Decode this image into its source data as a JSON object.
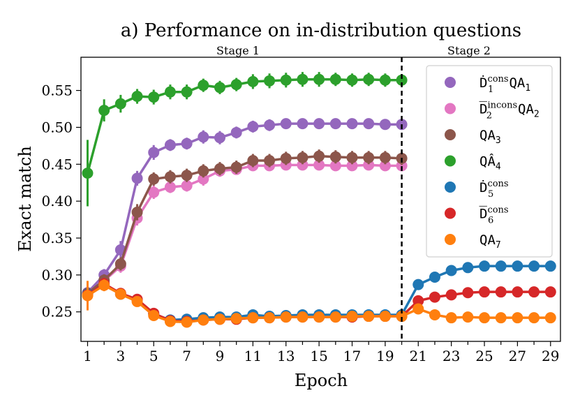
{
  "chart_data": {
    "type": "line",
    "title": "a) Performance on in-distribution questions",
    "xlabel": "Epoch",
    "ylabel": "Exact match",
    "xlim": [
      0.6,
      29.6
    ],
    "ylim": [
      0.21,
      0.595
    ],
    "xticks": [
      1,
      3,
      5,
      7,
      9,
      11,
      13,
      15,
      17,
      19,
      21,
      23,
      25,
      27,
      29
    ],
    "yticks": [
      0.25,
      0.3,
      0.35,
      0.4,
      0.45,
      0.5,
      0.55
    ],
    "ytick_labels": [
      "0.25",
      "0.30",
      "0.35",
      "0.40",
      "0.45",
      "0.50",
      "0.55"
    ],
    "stage_labels": {
      "stage1": "Stage 1",
      "stage2": "Stage 2"
    },
    "stage_boundary_epoch": 20,
    "legend_position": "top-right",
    "series": [
      {
        "name": "Ḋ1cons QA1",
        "legend": {
          "base": "Ḋ",
          "sub": "1",
          "sup": "cons",
          "rest": "QA",
          "rest_sub": "1"
        },
        "color": "#9467bd",
        "x": [
          1,
          2,
          3,
          4,
          5,
          6,
          7,
          8,
          9,
          10,
          11,
          12,
          13,
          14,
          15,
          16,
          17,
          18,
          19,
          20
        ],
        "y": [
          0.276,
          0.3,
          0.334,
          0.431,
          0.466,
          0.476,
          0.478,
          0.487,
          0.486,
          0.493,
          0.501,
          0.503,
          0.505,
          0.505,
          0.505,
          0.505,
          0.505,
          0.505,
          0.504,
          0.504
        ],
        "err": [
          0.008,
          0.008,
          0.012,
          0.01,
          0.01,
          0.008,
          0.008,
          0.009,
          0.009,
          0.008,
          0.008,
          0.008,
          0.007,
          0.007,
          0.007,
          0.007,
          0.007,
          0.007,
          0.007,
          0.007
        ]
      },
      {
        "name": "D2incons QA2",
        "legend": {
          "base": "D̅",
          "sub": "2",
          "sup": "incons",
          "rest": "QA",
          "rest_sub": "2"
        },
        "color": "#e377c2",
        "x": [
          1,
          2,
          3,
          4,
          5,
          6,
          7,
          8,
          9,
          10,
          11,
          12,
          13,
          14,
          15,
          16,
          17,
          18,
          19,
          20
        ],
        "y": [
          0.274,
          0.292,
          0.312,
          0.377,
          0.412,
          0.419,
          0.421,
          0.43,
          0.441,
          0.443,
          0.448,
          0.448,
          0.449,
          0.449,
          0.449,
          0.448,
          0.448,
          0.449,
          0.448,
          0.448
        ],
        "err": [
          0.008,
          0.008,
          0.009,
          0.01,
          0.009,
          0.008,
          0.008,
          0.009,
          0.008,
          0.007,
          0.007,
          0.007,
          0.006,
          0.006,
          0.006,
          0.006,
          0.006,
          0.006,
          0.006,
          0.006
        ]
      },
      {
        "name": "QA3",
        "legend": {
          "base": "QA",
          "sub": "3",
          "sup": "",
          "rest": "",
          "rest_sub": ""
        },
        "color": "#8c564b",
        "x": [
          1,
          2,
          3,
          4,
          5,
          6,
          7,
          8,
          9,
          10,
          11,
          12,
          13,
          14,
          15,
          16,
          17,
          18,
          19,
          20
        ],
        "y": [
          0.275,
          0.293,
          0.315,
          0.385,
          0.43,
          0.433,
          0.435,
          0.441,
          0.444,
          0.446,
          0.455,
          0.455,
          0.458,
          0.459,
          0.461,
          0.46,
          0.459,
          0.459,
          0.459,
          0.458
        ],
        "err": [
          0.008,
          0.008,
          0.009,
          0.011,
          0.009,
          0.009,
          0.009,
          0.009,
          0.009,
          0.009,
          0.009,
          0.009,
          0.009,
          0.009,
          0.009,
          0.009,
          0.009,
          0.009,
          0.009,
          0.009
        ]
      },
      {
        "name": "QÂ4",
        "legend": {
          "base": "QÂ",
          "sub": "4",
          "sup": "",
          "rest": "",
          "rest_sub": ""
        },
        "color": "#2ca02c",
        "x": [
          1,
          2,
          3,
          4,
          5,
          6,
          7,
          8,
          9,
          10,
          11,
          12,
          13,
          14,
          15,
          16,
          17,
          18,
          19,
          20
        ],
        "y": [
          0.438,
          0.523,
          0.532,
          0.542,
          0.541,
          0.548,
          0.548,
          0.557,
          0.554,
          0.558,
          0.562,
          0.563,
          0.564,
          0.565,
          0.565,
          0.565,
          0.564,
          0.565,
          0.564,
          0.564
        ],
        "err": [
          0.045,
          0.015,
          0.012,
          0.01,
          0.01,
          0.01,
          0.01,
          0.009,
          0.009,
          0.009,
          0.01,
          0.01,
          0.01,
          0.01,
          0.01,
          0.009,
          0.009,
          0.009,
          0.009,
          0.008
        ]
      },
      {
        "name": "Ḋ5cons",
        "legend": {
          "base": "Ḋ",
          "sub": "5",
          "sup": "cons",
          "rest": "",
          "rest_sub": ""
        },
        "color": "#1f77b4",
        "x": [
          1,
          2,
          3,
          4,
          5,
          6,
          7,
          8,
          9,
          10,
          11,
          12,
          13,
          14,
          15,
          16,
          17,
          18,
          19,
          20,
          21,
          22,
          23,
          24,
          25,
          26,
          27,
          28,
          29
        ],
        "y": [
          0.274,
          0.287,
          0.274,
          0.266,
          0.247,
          0.239,
          0.24,
          0.242,
          0.243,
          0.243,
          0.246,
          0.244,
          0.245,
          0.246,
          0.246,
          0.246,
          0.246,
          0.246,
          0.246,
          0.246,
          0.287,
          0.297,
          0.306,
          0.31,
          0.312,
          0.312,
          0.312,
          0.312,
          0.312
        ],
        "err": [
          0.01,
          0.008,
          0.007,
          0.006,
          0.005,
          0.004,
          0.004,
          0.004,
          0.004,
          0.004,
          0.004,
          0.004,
          0.004,
          0.004,
          0.004,
          0.004,
          0.004,
          0.004,
          0.004,
          0.004,
          0.004,
          0.004,
          0.004,
          0.004,
          0.004,
          0.004,
          0.004,
          0.004,
          0.004
        ]
      },
      {
        "name": "D6cons",
        "legend": {
          "base": "D̅",
          "sub": "6",
          "sup": "cons",
          "rest": "",
          "rest_sub": ""
        },
        "color": "#d62728",
        "x": [
          1,
          2,
          3,
          4,
          5,
          6,
          7,
          8,
          9,
          10,
          11,
          12,
          13,
          14,
          15,
          16,
          17,
          18,
          19,
          20,
          21,
          22,
          23,
          24,
          25,
          26,
          27,
          28,
          29
        ],
        "y": [
          0.273,
          0.288,
          0.275,
          0.267,
          0.248,
          0.238,
          0.237,
          0.239,
          0.24,
          0.24,
          0.242,
          0.242,
          0.243,
          0.243,
          0.243,
          0.243,
          0.243,
          0.244,
          0.244,
          0.244,
          0.265,
          0.27,
          0.273,
          0.276,
          0.277,
          0.277,
          0.277,
          0.277,
          0.277
        ],
        "err": [
          0.01,
          0.008,
          0.007,
          0.006,
          0.005,
          0.004,
          0.004,
          0.004,
          0.004,
          0.004,
          0.004,
          0.004,
          0.004,
          0.004,
          0.004,
          0.004,
          0.004,
          0.004,
          0.004,
          0.004,
          0.004,
          0.004,
          0.004,
          0.004,
          0.004,
          0.004,
          0.004,
          0.004,
          0.004
        ]
      },
      {
        "name": "QA7",
        "legend": {
          "base": "QA",
          "sub": "7",
          "sup": "",
          "rest": "",
          "rest_sub": ""
        },
        "color": "#ff7f0e",
        "x": [
          1,
          2,
          3,
          4,
          5,
          6,
          7,
          8,
          9,
          10,
          11,
          12,
          13,
          14,
          15,
          16,
          17,
          18,
          19,
          20,
          21,
          22,
          23,
          24,
          25,
          26,
          27,
          28,
          29
        ],
        "y": [
          0.272,
          0.286,
          0.274,
          0.264,
          0.245,
          0.237,
          0.236,
          0.239,
          0.24,
          0.241,
          0.242,
          0.242,
          0.243,
          0.243,
          0.243,
          0.243,
          0.244,
          0.244,
          0.244,
          0.244,
          0.254,
          0.246,
          0.242,
          0.243,
          0.242,
          0.242,
          0.242,
          0.242,
          0.242
        ],
        "err": [
          0.02,
          0.008,
          0.007,
          0.006,
          0.005,
          0.004,
          0.004,
          0.004,
          0.004,
          0.004,
          0.004,
          0.004,
          0.004,
          0.004,
          0.004,
          0.004,
          0.004,
          0.004,
          0.004,
          0.004,
          0.004,
          0.004,
          0.004,
          0.004,
          0.004,
          0.004,
          0.004,
          0.004,
          0.004
        ]
      }
    ]
  }
}
